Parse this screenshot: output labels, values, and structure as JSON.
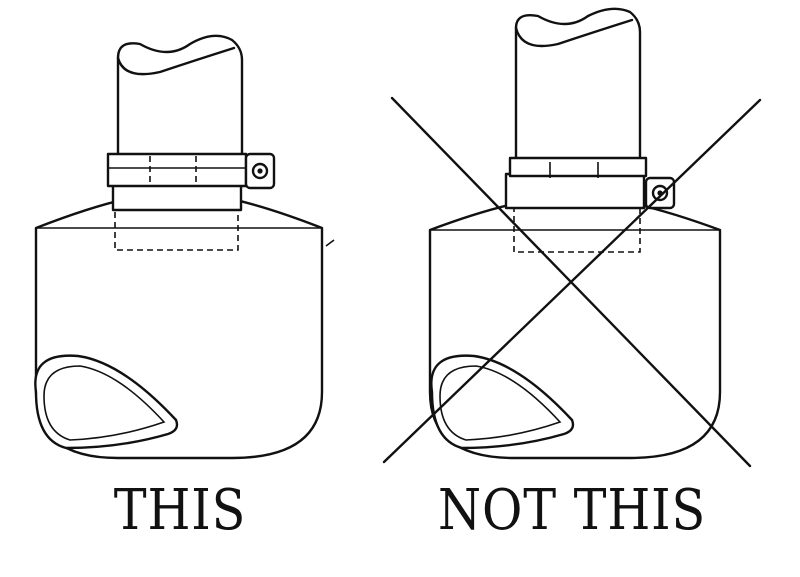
{
  "figure": {
    "correct": {
      "caption": "THIS"
    },
    "incorrect": {
      "caption": "NOT THIS"
    }
  },
  "colors": {
    "ink": "#111111",
    "background": "#ffffff"
  }
}
